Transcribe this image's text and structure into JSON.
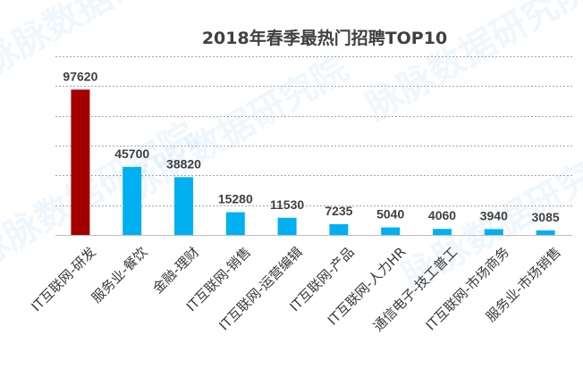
{
  "chart_data": {
    "type": "bar",
    "title": "2018年春季最热门招聘TOP10",
    "categories": [
      "IT互联网-研发",
      "服务业-餐饮",
      "金融-理财",
      "IT互联网-销售",
      "IT互联网-运营编辑",
      "IT互联网-产品",
      "IT互联网-人力HR",
      "通信电子-技工普工",
      "IT互联网-市场商务",
      "服务业-市场销售"
    ],
    "values": [
      97620,
      45700,
      38820,
      15280,
      11530,
      7235,
      5040,
      4060,
      3940,
      3085
    ],
    "value_labels": [
      "97620",
      "45700",
      "38820",
      "15280",
      "11530",
      "7235",
      "5040",
      "4060",
      "3940",
      "3085"
    ],
    "ylim": [
      0,
      120000
    ],
    "grid": true,
    "colors": {
      "highlight": "#a50000",
      "bar": "#00b0f0",
      "grid": "#a6a6a6",
      "text": "#404040"
    },
    "watermark": "脉脉数据研究院"
  }
}
